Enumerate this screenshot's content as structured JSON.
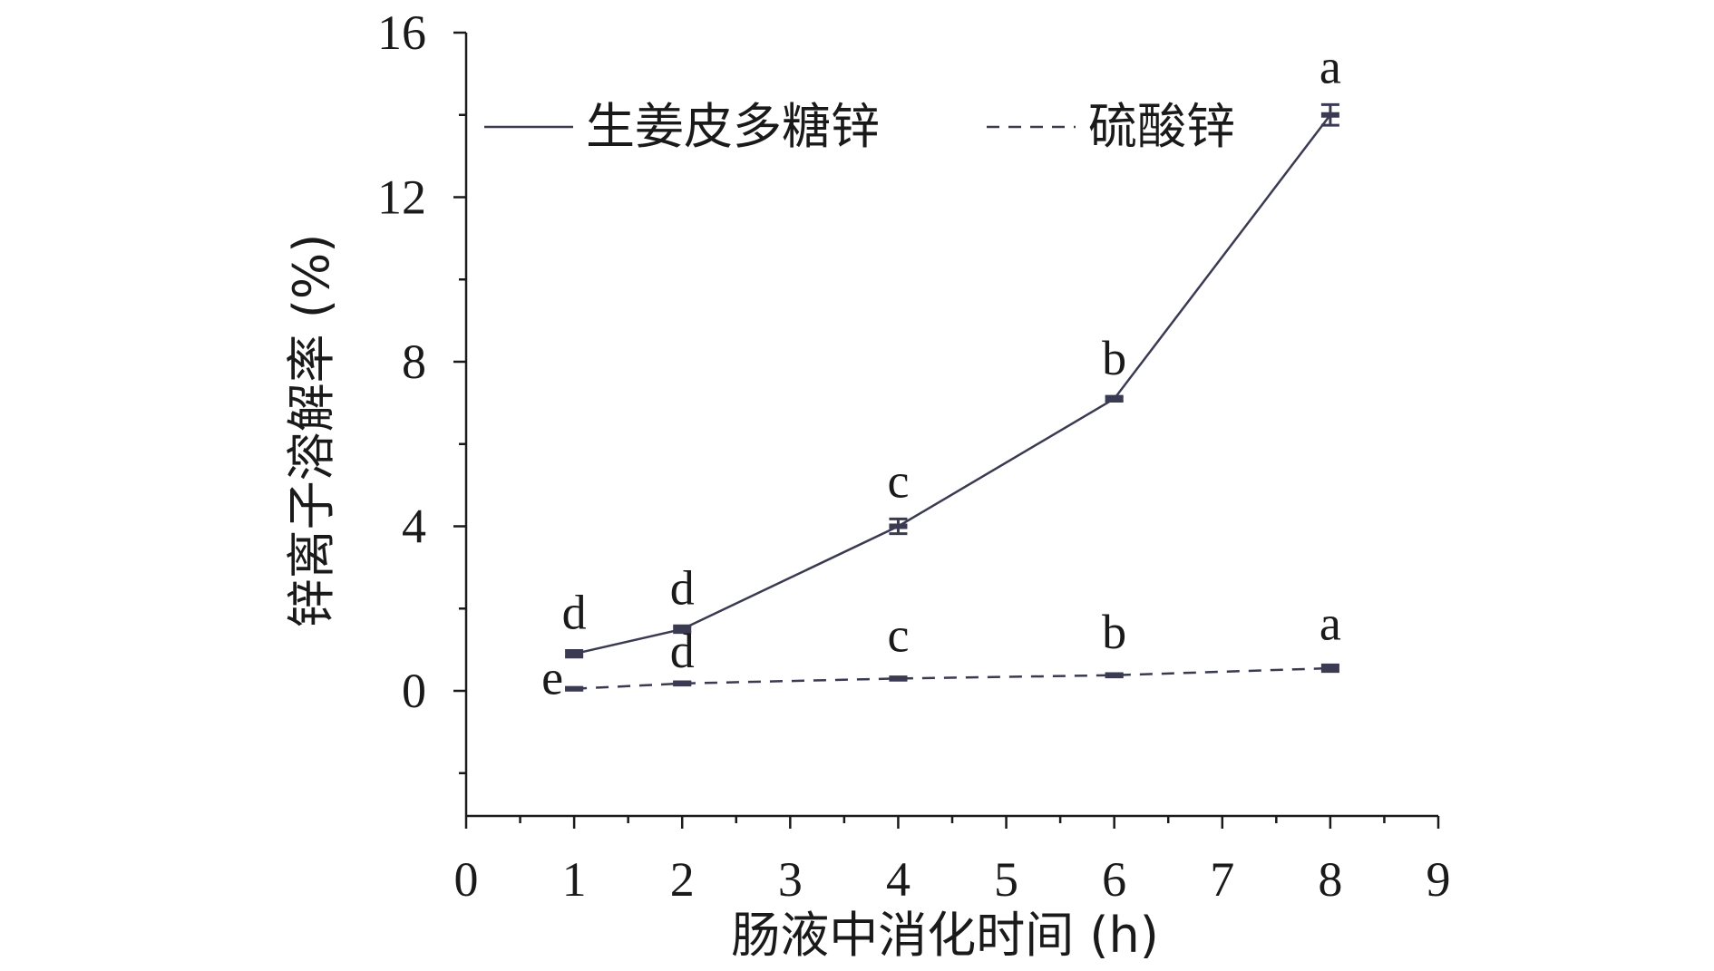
{
  "chart_data": {
    "type": "line",
    "xlabel": "肠液中消化时间 (h)",
    "ylabel": "锌离子溶解率 (%)",
    "xlim": [
      0,
      9
    ],
    "ylim": [
      -3,
      16
    ],
    "x_ticks": [
      0,
      1,
      2,
      3,
      4,
      5,
      6,
      7,
      8,
      9
    ],
    "y_ticks": [
      0,
      4,
      8,
      12,
      16
    ],
    "x_minor_step": 0.5,
    "y_minor_step": 2,
    "grid": false,
    "legend_position": "top",
    "colors": {
      "line": "#3a3a52",
      "axis": "#1a1a1a"
    },
    "series": [
      {
        "name": "生姜皮多糖锌",
        "style": "solid",
        "x": [
          1,
          2,
          4,
          6,
          8
        ],
        "y": [
          0.9,
          1.5,
          4.0,
          7.1,
          14.0
        ],
        "error": [
          0.08,
          0.08,
          0.18,
          0.06,
          0.25
        ],
        "labels": [
          "d",
          "d",
          "c",
          "b",
          "a"
        ]
      },
      {
        "name": "硫酸锌",
        "style": "dashed",
        "x": [
          1,
          2,
          4,
          6,
          8
        ],
        "y": [
          0.05,
          0.18,
          0.3,
          0.38,
          0.55
        ],
        "error": [
          0.03,
          0.04,
          0.04,
          0.04,
          0.08
        ],
        "labels": [
          "e",
          "d",
          "c",
          "b",
          "a"
        ]
      }
    ]
  }
}
